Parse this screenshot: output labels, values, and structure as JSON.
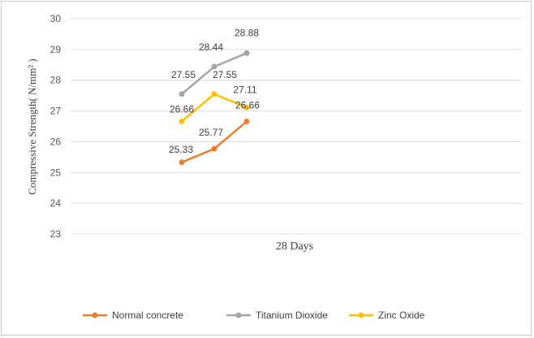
{
  "chart_data": {
    "type": "line",
    "x": [
      "1",
      "2",
      "3"
    ],
    "xlabel": "28 Days",
    "ylabel": "Compressive Strength( N/mm² )",
    "ylim": [
      23,
      30
    ],
    "yticks": [
      23,
      24,
      25,
      26,
      27,
      28,
      29,
      30
    ],
    "grid": true,
    "legend_position": "bottom",
    "series": [
      {
        "name": "Normal concrete",
        "color": "#ED7D31",
        "values": [
          25.33,
          25.77,
          26.66
        ]
      },
      {
        "name": "Titanium Dioxide",
        "color": "#A5A5A5",
        "values": [
          27.55,
          28.44,
          28.88
        ]
      },
      {
        "name": "Zinc Oxide",
        "color": "#FFC000",
        "values": [
          26.66,
          27.55,
          27.11
        ]
      }
    ]
  }
}
